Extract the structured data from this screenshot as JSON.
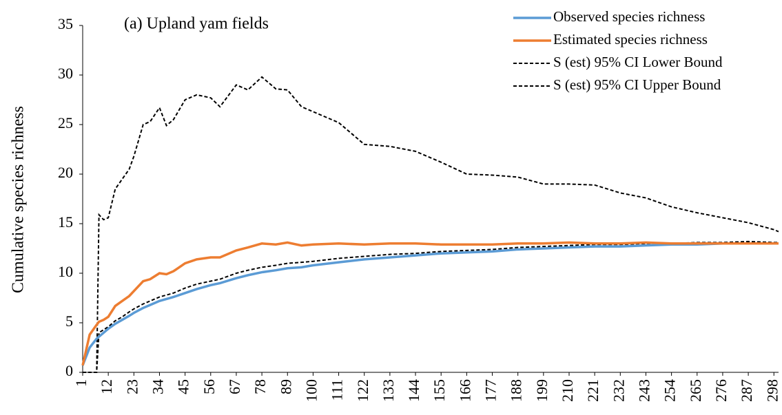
{
  "chart_data": {
    "type": "line",
    "title": "(a) Upland yam fields",
    "y_label": "Cumulative species richness",
    "x": [
      1,
      4,
      7,
      8,
      10,
      12,
      15,
      18,
      21,
      23,
      27,
      30,
      34,
      37,
      40,
      45,
      50,
      56,
      60,
      67,
      72,
      78,
      84,
      89,
      95,
      100,
      111,
      122,
      133,
      144,
      155,
      166,
      177,
      188,
      199,
      210,
      221,
      232,
      243,
      254,
      265,
      276,
      287,
      298,
      300
    ],
    "series": [
      {
        "name": "Observed species richness",
        "color": "#5b9bd5",
        "dash": false,
        "values": [
          0.7,
          2.5,
          3.4,
          3.6,
          4,
          4.4,
          4.9,
          5.3,
          5.7,
          6,
          6.5,
          6.8,
          7.2,
          7.4,
          7.6,
          8,
          8.4,
          8.8,
          9,
          9.5,
          9.8,
          10.1,
          10.3,
          10.5,
          10.6,
          10.8,
          11.1,
          11.4,
          11.6,
          11.8,
          12,
          12.1,
          12.2,
          12.4,
          12.5,
          12.6,
          12.7,
          12.7,
          12.8,
          12.9,
          12.9,
          13,
          13,
          13,
          13
        ]
      },
      {
        "name": "Estimated species richness",
        "color": "#ed7d31",
        "dash": false,
        "values": [
          0.7,
          3.8,
          4.8,
          5.1,
          5.3,
          5.6,
          6.7,
          7.2,
          7.7,
          8.2,
          9.2,
          9.4,
          10,
          9.9,
          10.2,
          11,
          11.4,
          11.6,
          11.6,
          12.3,
          12.6,
          13,
          12.9,
          13.1,
          12.8,
          12.9,
          13,
          12.9,
          13,
          13,
          12.9,
          12.9,
          12.9,
          13,
          13,
          13.1,
          13,
          13,
          13.1,
          13,
          13,
          13,
          13,
          13,
          13
        ]
      },
      {
        "name": "S (est) 95% CI Lower Bound",
        "color": "#000000",
        "dash": true,
        "values": [
          0,
          0,
          0,
          4,
          4.3,
          4.6,
          5.2,
          5.6,
          6.1,
          6.4,
          6.9,
          7.2,
          7.6,
          7.8,
          8,
          8.5,
          8.9,
          9.2,
          9.4,
          10,
          10.3,
          10.6,
          10.8,
          11,
          11.1,
          11.2,
          11.5,
          11.7,
          11.9,
          12,
          12.2,
          12.3,
          12.4,
          12.6,
          12.7,
          12.8,
          12.9,
          12.9,
          13,
          13,
          13.1,
          13.1,
          13.2,
          13.1,
          13.1
        ]
      },
      {
        "name": "S (est) 95% CI Upper Bound",
        "color": "#000000",
        "dash": true,
        "values": [
          0,
          0,
          0,
          15.9,
          15.4,
          15.6,
          18.5,
          19.5,
          20.5,
          21.8,
          25,
          25.3,
          26.7,
          24.9,
          25.5,
          27.5,
          28,
          27.7,
          26.8,
          29,
          28.5,
          29.8,
          28.6,
          28.5,
          26.8,
          26.3,
          25.2,
          23,
          22.8,
          22.3,
          21.2,
          20,
          19.9,
          19.7,
          19,
          19,
          18.9,
          18.1,
          17.6,
          16.7,
          16.1,
          15.6,
          15.1,
          14.4,
          14.2
        ]
      }
    ],
    "xlim": [
      1,
      300
    ],
    "xticks": [
      1,
      12,
      23,
      34,
      45,
      56,
      67,
      78,
      89,
      100,
      111,
      122,
      133,
      144,
      155,
      166,
      177,
      188,
      199,
      210,
      221,
      232,
      243,
      254,
      265,
      276,
      287,
      298
    ],
    "ylim": [
      0,
      35
    ],
    "yticks": [
      0,
      5,
      10,
      15,
      20,
      25,
      30,
      35
    ],
    "grid": false,
    "legend": "top-right"
  }
}
